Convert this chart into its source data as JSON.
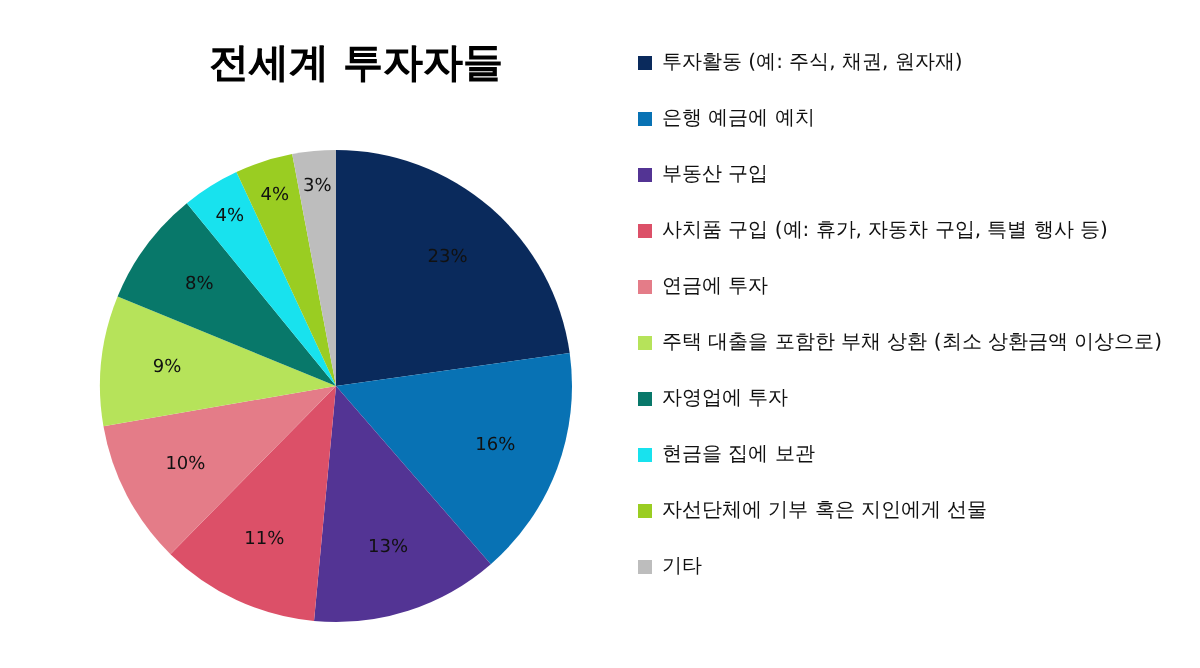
{
  "chart_data": {
    "type": "pie",
    "title": "전세계 투자자들",
    "categories": [
      "투자활동 (예: 주식, 채권, 원자재)",
      "은행 예금에 예치",
      "부동산 구입",
      "사치품 구입 (예: 휴가, 자동차 구입, 특별 행사 등)",
      "연금에 투자",
      "주택 대출을 포함한 부채 상환 (최소 상환금액 이상으로)",
      "자영업에 투자",
      "현금을 집에 보관",
      "자선단체에 기부 혹은 지인에게 선물",
      "기타"
    ],
    "values": [
      23,
      16,
      13,
      11,
      10,
      9,
      8,
      4,
      4,
      3
    ],
    "value_labels": [
      "23%",
      "16%",
      "13%",
      "11%",
      "10%",
      "9%",
      "8%",
      "4%",
      "4%",
      "3%"
    ],
    "colors": [
      "#0a2a5c",
      "#0872b4",
      "#533494",
      "#dc5068",
      "#e47c88",
      "#b6e35a",
      "#08786a",
      "#18e2ee",
      "#9acd22",
      "#bdbdbd"
    ],
    "legend": "right"
  }
}
